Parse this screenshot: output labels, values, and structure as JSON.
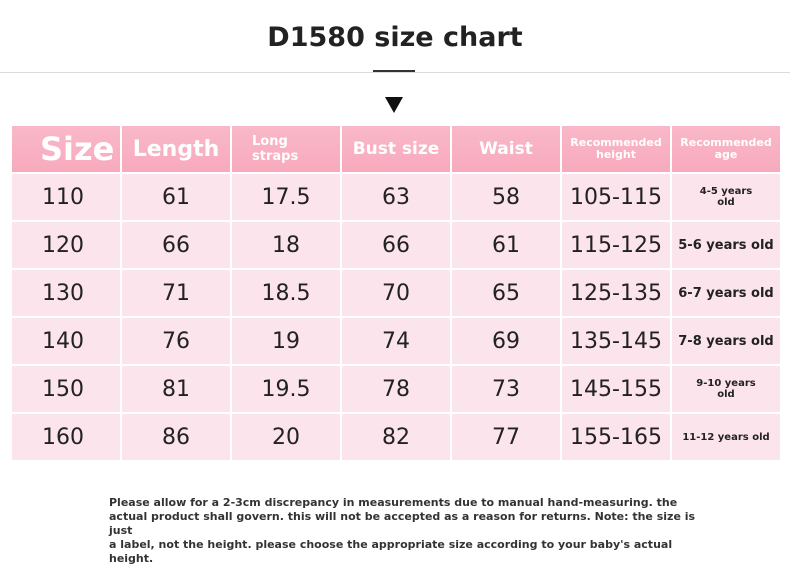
{
  "title": "D1580 size chart",
  "headers": {
    "size": "Size",
    "length": "Length",
    "straps_line1": "Long",
    "straps_line2": "straps",
    "bust": "Bust size",
    "waist": "Waist",
    "height_line1": "Recommended",
    "height_line2": "height",
    "age_line1": "Recommended",
    "age_line2": "age"
  },
  "rows": [
    {
      "size": "110",
      "length": "61",
      "straps": "17.5",
      "bust": "63",
      "waist": "58",
      "height": "105-115",
      "age_line1": "4-5 years",
      "age_line2": "old"
    },
    {
      "size": "120",
      "length": "66",
      "straps": "18",
      "bust": "66",
      "waist": "61",
      "height": "115-125",
      "age_line1": "5-6 years old",
      "age_line2": ""
    },
    {
      "size": "130",
      "length": "71",
      "straps": "18.5",
      "bust": "70",
      "waist": "65",
      "height": "125-135",
      "age_line1": "6-7 years old",
      "age_line2": ""
    },
    {
      "size": "140",
      "length": "76",
      "straps": "19",
      "bust": "74",
      "waist": "69",
      "height": "135-145",
      "age_line1": "7-8 years old",
      "age_line2": ""
    },
    {
      "size": "150",
      "length": "81",
      "straps": "19.5",
      "bust": "78",
      "waist": "73",
      "height": "145-155",
      "age_line1": "9-10 years",
      "age_line2": "old"
    },
    {
      "size": "160",
      "length": "86",
      "straps": "20",
      "bust": "82",
      "waist": "77",
      "height": "155-165",
      "age_line1": "11-12 years old",
      "age_line2": ""
    }
  ],
  "note": {
    "line1": "Please allow for a 2-3cm discrepancy in measurements due to manual hand-measuring. the",
    "line2": "actual product shall govern. this will not be accepted as a reason for returns. Note: the size is just",
    "line3": "a label, not the height. please choose the appropriate size according to your baby's actual height."
  },
  "colors": {
    "header_pink": "#f7aabd",
    "row_pink": "#fce4ec"
  }
}
